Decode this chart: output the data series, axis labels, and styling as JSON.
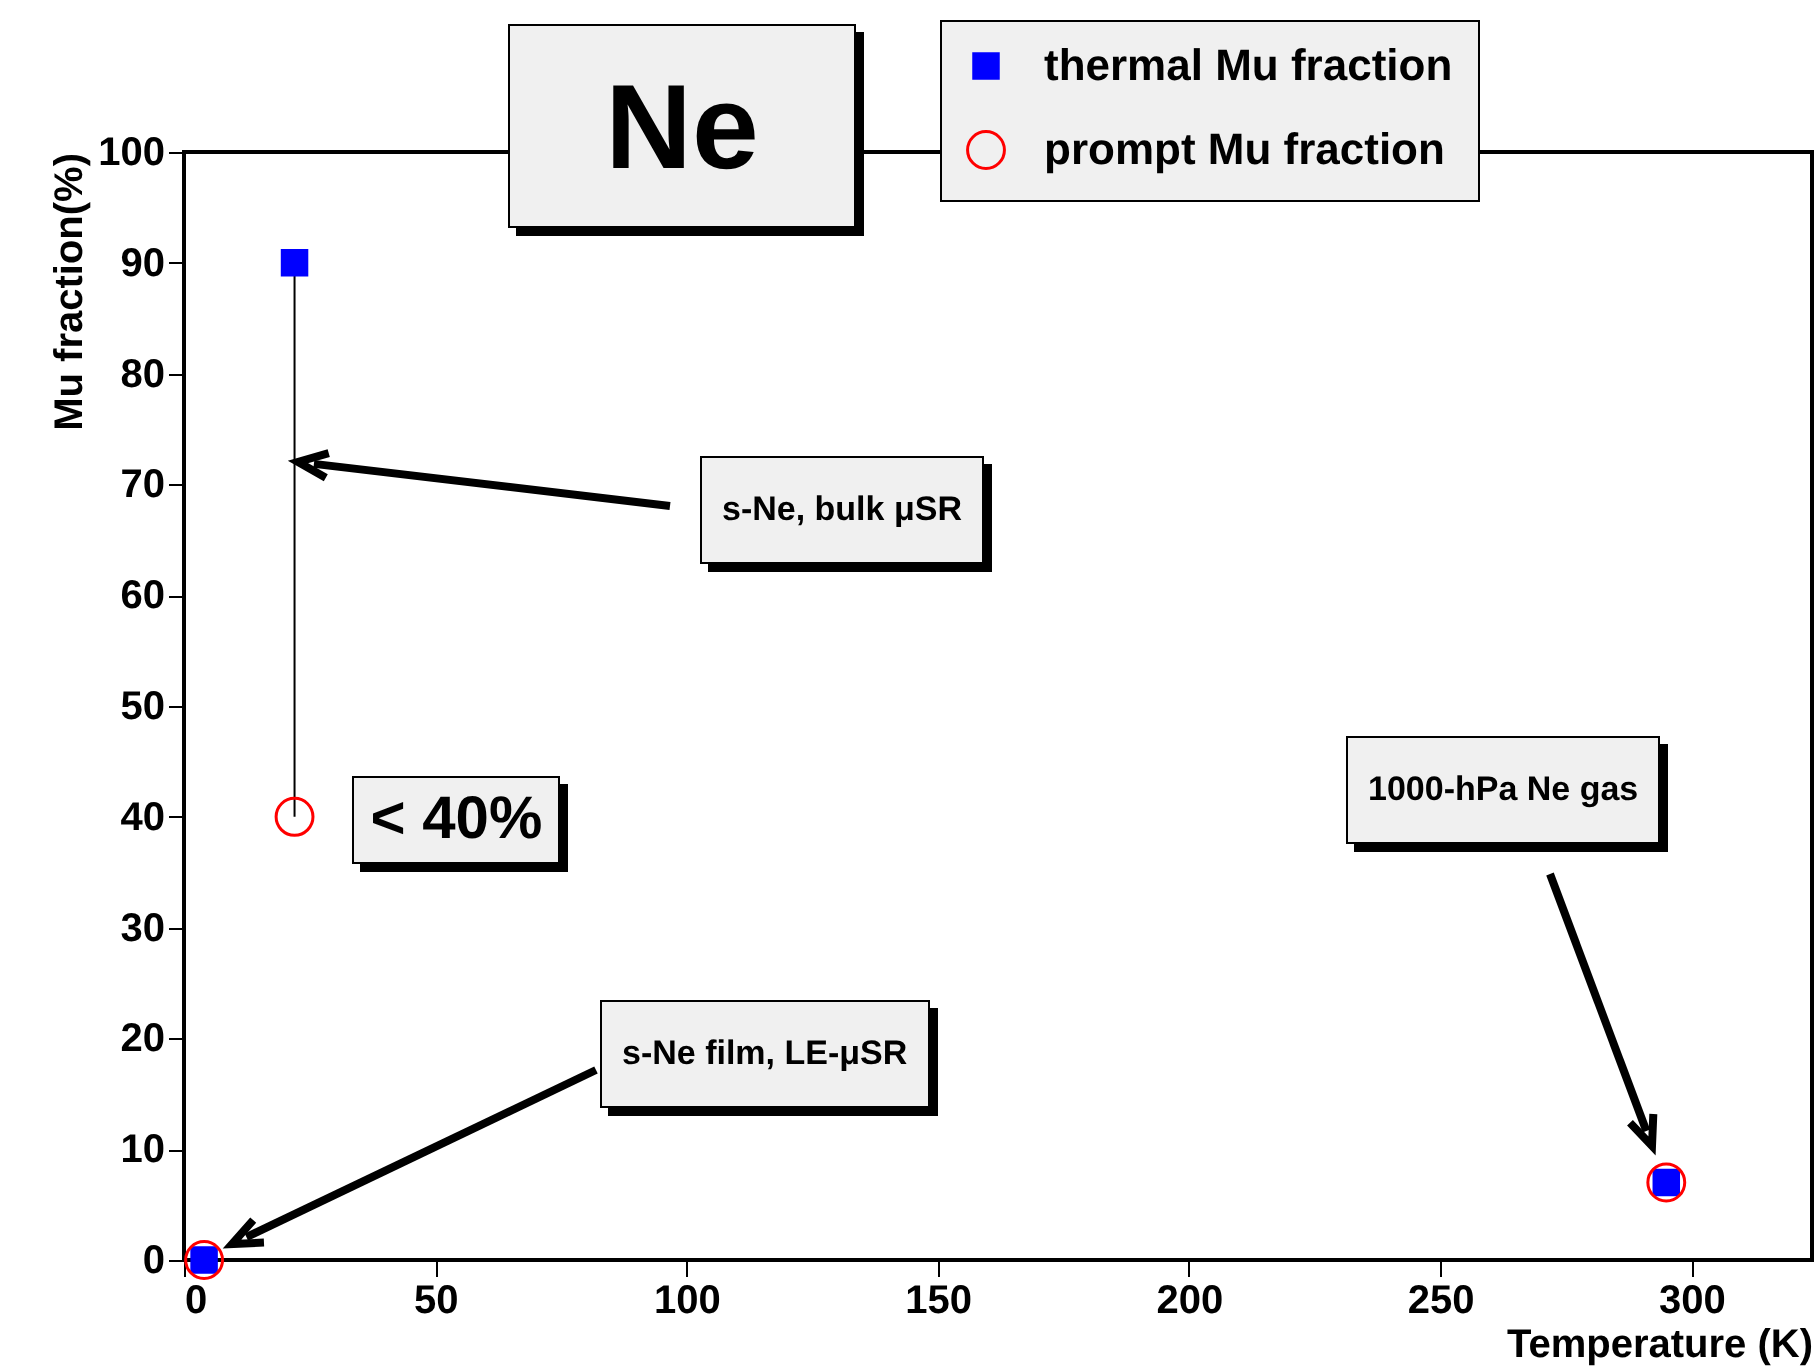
{
  "chart_data": {
    "type": "scatter",
    "title": "Ne",
    "xlabel": "Temperature (K)",
    "ylabel": "Mu fraction(%)",
    "xlim": [
      0,
      324
    ],
    "xticks": [
      0,
      50,
      100,
      150,
      200,
      250,
      300
    ],
    "ylim": [
      0,
      100
    ],
    "yticks": [
      0,
      10,
      20,
      30,
      40,
      50,
      60,
      70,
      80,
      90,
      100
    ],
    "grid": false,
    "legend": "top right",
    "series": [
      {
        "name": "thermal Mu fraction",
        "color": "#0000ff",
        "marker": "square",
        "x": [
          22,
          4,
          295
        ],
        "values": [
          90,
          0,
          7
        ],
        "errors": [
          [
            40,
            90
          ],
          null,
          null
        ]
      },
      {
        "name": "prompt Mu fraction",
        "color": "#ff0000",
        "marker": "circle",
        "x": [
          22,
          4,
          295
        ],
        "values": [
          40,
          0,
          7
        ]
      }
    ],
    "annotations": [
      "s-Ne, bulk μSR",
      {
        "text": "< 40%",
        "x": 22,
        "y": 40
      },
      "s-Ne film, LE-μSR",
      "1000-hPa Ne gas"
    ]
  }
}
